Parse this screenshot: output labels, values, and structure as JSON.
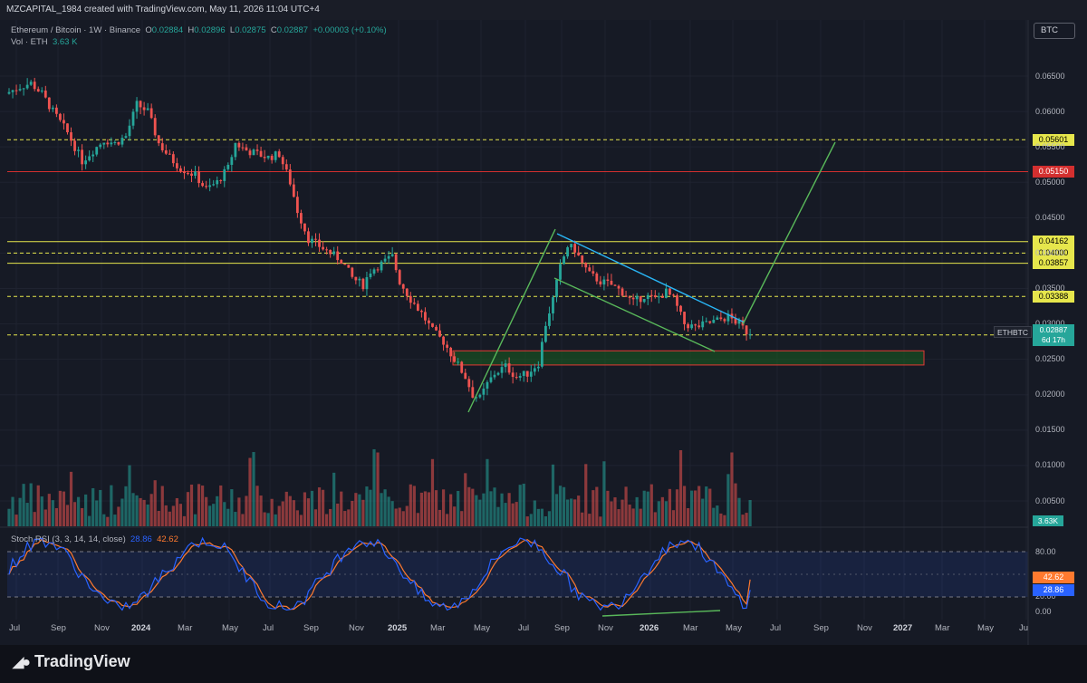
{
  "header": {
    "author": "MZCAPITAL_1984 created with TradingView.com, May 11, 2026 11:04 UTC+4"
  },
  "legend": {
    "symbol": "Ethereum / Bitcoin · 1W · Binance",
    "o_label": "O",
    "o": "0.02884",
    "h_label": "H",
    "h": "0.02896",
    "l_label": "L",
    "l": "0.02875",
    "c_label": "C",
    "c": "0.02887",
    "change": "+0.00003 (+0.10%)",
    "vol_label": "Vol · ETH",
    "vol": "3.63 K"
  },
  "currency_badge": "BTC",
  "ticker_tag": "ETHBTC",
  "price_tag": {
    "price": "0.02887",
    "countdown": "6d 17h"
  },
  "volume_tag": "3.63K",
  "rsi_legend": {
    "label": "Stoch RSI (3, 3, 14, 14, close)",
    "k": "28.86",
    "d": "42.62"
  },
  "rsi_tags": {
    "d": "42.62",
    "k": "28.86"
  },
  "logo": {
    "text": "TradingView"
  },
  "colors": {
    "background": "#161a25",
    "up": "#26a69a",
    "down": "#ef5350",
    "yellow": "#e6e64c",
    "red_line": "#d32f2f",
    "green_line": "#59b85a",
    "blue_line": "#29b6f6",
    "rsi_k": "#2962ff",
    "rsi_d": "#ff7a2f"
  },
  "chart_data": {
    "type": "candlestick",
    "price_axis": {
      "ticks": [
        "0.06500",
        "0.06000",
        "0.05500",
        "0.05000",
        "0.04500",
        "0.04000",
        "0.03500",
        "0.03000",
        "0.02500",
        "0.02000",
        "0.01500",
        "0.01000",
        "0.00500"
      ],
      "range": [
        0.0,
        0.069
      ]
    },
    "rsi_axis": {
      "ticks": [
        "80.00",
        "20.00",
        "0.00"
      ],
      "range": [
        0,
        100
      ]
    },
    "time_axis": [
      "Jul",
      "Sep",
      "Nov",
      "2024",
      "Mar",
      "May",
      "Jul",
      "Sep",
      "Nov",
      "2025",
      "Mar",
      "May",
      "Jul",
      "Sep",
      "Nov",
      "2026",
      "Mar",
      "May",
      "Jul",
      "Sep",
      "Nov",
      "2027",
      "Mar",
      "May",
      "Ju"
    ],
    "time_axis_bold": [
      "2024",
      "2025",
      "2026",
      "2027"
    ],
    "horizontal_levels": [
      {
        "value": 0.05601,
        "label": "0.05601",
        "style": "dashed",
        "color": "#e6e64c"
      },
      {
        "value": 0.0515,
        "label": "0.05150",
        "style": "solid",
        "color": "#d32f2f"
      },
      {
        "value": 0.04162,
        "label": "0.04162",
        "style": "solid",
        "color": "#e6e64c"
      },
      {
        "value": 0.04,
        "label": "0.04000",
        "style": "dashed",
        "color": "#e6e64c"
      },
      {
        "value": 0.03857,
        "label": "0.03857",
        "style": "solid",
        "color": "#e6e64c"
      },
      {
        "value": 0.03388,
        "label": "0.03388",
        "style": "dashed",
        "color": "#e6e64c"
      },
      {
        "value": 0.02845,
        "label": "0.02845",
        "style": "dashed",
        "color": "#e6e64c"
      }
    ],
    "zone": {
      "from_date": "2025-04",
      "to_date": "2027-02",
      "low": 0.0242,
      "high": 0.0262,
      "color": "#1b5e20"
    },
    "series_anchor_price": [
      [
        0,
        0.0625
      ],
      [
        4,
        0.0635
      ],
      [
        7,
        0.064
      ],
      [
        10,
        0.0625
      ],
      [
        13,
        0.06
      ],
      [
        17,
        0.057
      ],
      [
        21,
        0.053
      ],
      [
        24,
        0.0545
      ],
      [
        27,
        0.056
      ],
      [
        30,
        0.0555
      ],
      [
        33,
        0.0565
      ],
      [
        36,
        0.061
      ],
      [
        39,
        0.06
      ],
      [
        42,
        0.0555
      ],
      [
        45,
        0.0535
      ],
      [
        48,
        0.052
      ],
      [
        52,
        0.051
      ],
      [
        55,
        0.049
      ],
      [
        58,
        0.05
      ],
      [
        61,
        0.052
      ],
      [
        63,
        0.0555
      ],
      [
        66,
        0.0545
      ],
      [
        69,
        0.054
      ],
      [
        72,
        0.0535
      ],
      [
        75,
        0.054
      ],
      [
        78,
        0.05
      ],
      [
        80,
        0.046
      ],
      [
        83,
        0.042
      ],
      [
        86,
        0.041
      ],
      [
        89,
        0.04
      ],
      [
        92,
        0.039
      ],
      [
        95,
        0.0365
      ],
      [
        98,
        0.0355
      ],
      [
        100,
        0.0375
      ],
      [
        103,
        0.0385
      ],
      [
        106,
        0.0395
      ],
      [
        108,
        0.036
      ],
      [
        111,
        0.0335
      ],
      [
        114,
        0.0315
      ],
      [
        117,
        0.029
      ],
      [
        120,
        0.0275
      ],
      [
        123,
        0.025
      ],
      [
        126,
        0.0225
      ],
      [
        128,
        0.02
      ],
      [
        130,
        0.0195
      ],
      [
        132,
        0.0215
      ],
      [
        134,
        0.023
      ],
      [
        137,
        0.024
      ],
      [
        140,
        0.0225
      ],
      [
        143,
        0.023
      ],
      [
        146,
        0.0245
      ],
      [
        148,
        0.03
      ],
      [
        150,
        0.0335
      ],
      [
        152,
        0.038
      ],
      [
        154,
        0.041
      ],
      [
        156,
        0.0405
      ],
      [
        158,
        0.0385
      ],
      [
        160,
        0.037
      ],
      [
        163,
        0.036
      ],
      [
        166,
        0.0355
      ],
      [
        169,
        0.0345
      ],
      [
        172,
        0.033
      ],
      [
        175,
        0.034
      ],
      [
        178,
        0.0335
      ],
      [
        181,
        0.0345
      ],
      [
        183,
        0.0335
      ],
      [
        186,
        0.03
      ],
      [
        189,
        0.0295
      ],
      [
        192,
        0.03
      ],
      [
        195,
        0.0305
      ],
      [
        198,
        0.031
      ],
      [
        201,
        0.03
      ],
      [
        203,
        0.0289
      ]
    ],
    "volume_axis_units": "ETH",
    "stoch_rsi": {
      "k_last": 28.86,
      "d_last": 42.62,
      "upper_band": 80,
      "lower_band": 20
    }
  }
}
